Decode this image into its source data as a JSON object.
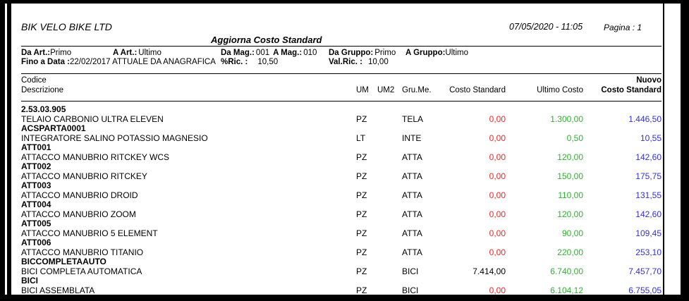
{
  "report": {
    "company": "BIK VELO BIKE LTD",
    "datetime": "07/05/2020 - 11:05",
    "page_label": "Pagina : 1",
    "title": "Aggiorna Costo Standard",
    "filters": {
      "da_art": {
        "label": "Da Art.:",
        "value": "Primo"
      },
      "a_art": {
        "label": "A Art.:",
        "value": "Ultimo"
      },
      "da_mag": {
        "label": "Da Mag.:",
        "value": "001"
      },
      "a_mag": {
        "label": "A Mag.:",
        "value": "010"
      },
      "da_gruppo": {
        "label": "Da Gruppo:",
        "value": "Primo"
      },
      "a_gruppo": {
        "label": "A Gruppo:",
        "value": "Ultimo"
      },
      "fino_a_data": {
        "label": "Fino a Data :",
        "value": "22/02/2017 ATTUALE DA ANAGRAFICA"
      },
      "perc_ric": {
        "label": "%Ric.  :",
        "value": "10,50"
      },
      "val_ric": {
        "label": "Val.Ric. :",
        "value": "10,00"
      }
    },
    "columns": {
      "codice": "Codice",
      "descrizione": "Descrizione",
      "um": "UM",
      "um2": "UM2",
      "gru_me": "Gru.Me.",
      "costo_standard": "Costo Standard",
      "ultimo_costo": "Ultimo Costo",
      "nuovo_top": "Nuovo",
      "nuovo_bottom": "Costo Standard"
    },
    "colors": {
      "costo_zero": "#fb2222",
      "ultimo_costo": "#2eb22e",
      "nuovo_costo": "#3030e0",
      "text": "#000000"
    },
    "rows": [
      {
        "code": "2.53.03.905",
        "description": "TELAIO CARBONIO ULTRA ELEVEN",
        "um": "PZ",
        "um2": "",
        "gru_me": "TELA",
        "costo_standard": "0,00",
        "costo_color": "costo_zero",
        "ultimo_costo": "1.300,00",
        "nuovo_costo_standard": "1.446,50"
      },
      {
        "code": "ACSPARTA0001",
        "description": "INTEGRATORE SALINO POTASSIO MAGNESIO",
        "um": "LT",
        "um2": "",
        "gru_me": "INTE",
        "costo_standard": "0,00",
        "costo_color": "costo_zero",
        "ultimo_costo": "0,50",
        "nuovo_costo_standard": "10,55"
      },
      {
        "code": "ATT001",
        "description": "ATTACCO MANUBRIO RITCKEY WCS",
        "um": "PZ",
        "um2": "",
        "gru_me": "ATTA",
        "costo_standard": "0,00",
        "costo_color": "costo_zero",
        "ultimo_costo": "120,00",
        "nuovo_costo_standard": "142,60"
      },
      {
        "code": "ATT002",
        "description": "ATTACCO MANUBRIO RITCKEY",
        "um": "PZ",
        "um2": "",
        "gru_me": "ATTA",
        "costo_standard": "0,00",
        "costo_color": "costo_zero",
        "ultimo_costo": "150,00",
        "nuovo_costo_standard": "175,75"
      },
      {
        "code": "ATT003",
        "description": "ATTACCO MANUBRIO DROID",
        "um": "PZ",
        "um2": "",
        "gru_me": "ATTA",
        "costo_standard": "0,00",
        "costo_color": "costo_zero",
        "ultimo_costo": "110,00",
        "nuovo_costo_standard": "131,55"
      },
      {
        "code": "ATT004",
        "description": "ATTACCO MANUBRIO ZOOM",
        "um": "PZ",
        "um2": "",
        "gru_me": "ATTA",
        "costo_standard": "0,00",
        "costo_color": "costo_zero",
        "ultimo_costo": "120,00",
        "nuovo_costo_standard": "142,60"
      },
      {
        "code": "ATT005",
        "description": "ATTACCO MANUBRIO 5 ELEMENT",
        "um": "PZ",
        "um2": "",
        "gru_me": "ATTA",
        "costo_standard": "0,00",
        "costo_color": "costo_zero",
        "ultimo_costo": "90,00",
        "nuovo_costo_standard": "109,45"
      },
      {
        "code": "ATT006",
        "description": "ATTACCO MANUBRIO TITANIO",
        "um": "PZ",
        "um2": "",
        "gru_me": "ATTA",
        "costo_standard": "0,00",
        "costo_color": "costo_zero",
        "ultimo_costo": "220,00",
        "nuovo_costo_standard": "253,10"
      },
      {
        "code": "BICCOMPLETAAUTO",
        "description": "BICI COMPLETA AUTOMATICA",
        "um": "PZ",
        "um2": "",
        "gru_me": "BICI",
        "costo_standard": "7.414,00",
        "costo_color": "text",
        "ultimo_costo": "6.740,00",
        "nuovo_costo_standard": "7.457,70"
      },
      {
        "code": "BICI",
        "description": "BICI ASSEMBLATA",
        "um": "PZ",
        "um2": "",
        "gru_me": "BICI",
        "costo_standard": "0,00",
        "costo_color": "costo_zero",
        "ultimo_costo": "6.104,12",
        "nuovo_costo_standard": "6.755,05"
      }
    ]
  }
}
